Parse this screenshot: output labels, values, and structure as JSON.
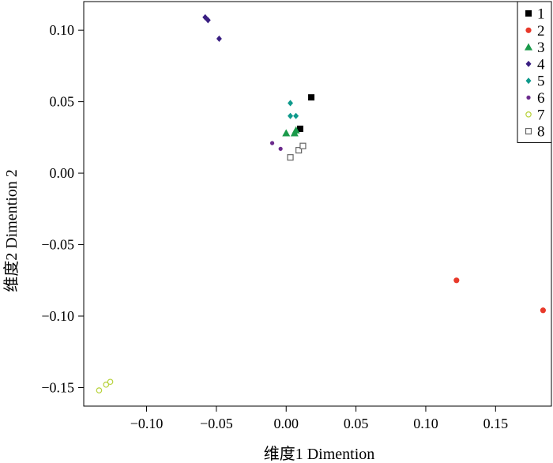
{
  "chart_data": {
    "type": "scatter",
    "xlabel": "维度1 Dimention",
    "ylabel": "维度2 Dimention 2",
    "xlim": [
      -0.145,
      0.19
    ],
    "ylim": [
      -0.163,
      0.12
    ],
    "xticks": [
      -0.1,
      -0.05,
      0.0,
      0.05,
      0.1,
      0.15
    ],
    "xtick_labels": [
      "−0.10",
      "−0.05",
      "0.00",
      "0.05",
      "0.10",
      "0.15"
    ],
    "yticks": [
      0.1,
      0.05,
      0.0,
      -0.05,
      -0.1,
      -0.15
    ],
    "ytick_labels": [
      "0.10",
      "0.05",
      "0.00",
      "−0.05",
      "−0.10",
      "−0.15"
    ],
    "grid": false,
    "legend_position": "top-right",
    "series": [
      {
        "name": "1",
        "marker": "square-filled",
        "color": "#000000",
        "points": [
          [
            0.018,
            0.053
          ],
          [
            0.01,
            0.031
          ]
        ]
      },
      {
        "name": "2",
        "marker": "circle-filled",
        "color": "#e8392a",
        "points": [
          [
            0.122,
            -0.075
          ],
          [
            0.184,
            -0.096
          ]
        ]
      },
      {
        "name": "3",
        "marker": "triangle-filled",
        "color": "#1a9a4a",
        "points": [
          [
            0.0,
            0.028
          ],
          [
            0.006,
            0.028
          ],
          [
            0.007,
            0.03
          ]
        ]
      },
      {
        "name": "4",
        "marker": "diamond-filled",
        "color": "#3a1f82",
        "points": [
          [
            -0.058,
            0.109
          ],
          [
            -0.056,
            0.107
          ],
          [
            -0.048,
            0.094
          ]
        ]
      },
      {
        "name": "5",
        "marker": "diamond-filled",
        "color": "#0f9a8c",
        "points": [
          [
            0.003,
            0.049
          ],
          [
            0.003,
            0.04
          ],
          [
            0.007,
            0.04
          ]
        ]
      },
      {
        "name": "6",
        "marker": "circle-filled-small",
        "color": "#6b2a8c",
        "points": [
          [
            -0.01,
            0.021
          ],
          [
            -0.004,
            0.017
          ]
        ]
      },
      {
        "name": "7",
        "marker": "circle-open",
        "color": "#b7d23a",
        "points": [
          [
            -0.134,
            -0.152
          ],
          [
            -0.129,
            -0.148
          ],
          [
            -0.126,
            -0.146
          ]
        ]
      },
      {
        "name": "8",
        "marker": "square-open",
        "color": "#666666",
        "points": [
          [
            0.003,
            0.011
          ],
          [
            0.009,
            0.016
          ],
          [
            0.012,
            0.019
          ]
        ]
      }
    ]
  }
}
